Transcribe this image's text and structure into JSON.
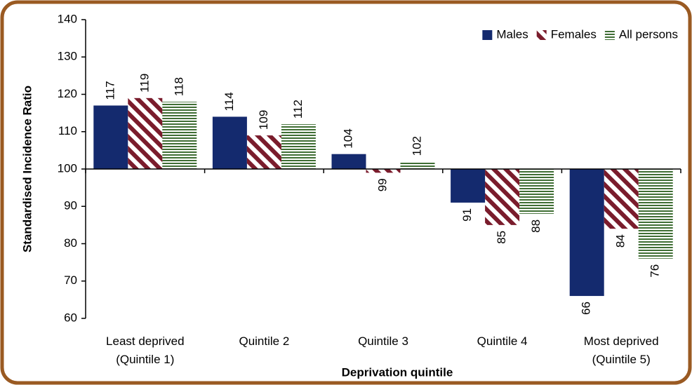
{
  "chart_data": {
    "type": "bar",
    "xlabel": "Deprivation quintile",
    "ylabel": "Standardised Incidence Ratio",
    "categories": [
      "Least deprived (Quintile 1)",
      "Quintile 2",
      "Quintile 3",
      "Quintile 4",
      "Most deprived (Quintile 5)"
    ],
    "series": [
      {
        "name": "Males",
        "color": "#142a6e",
        "pattern": "solid",
        "values": [
          117,
          114,
          104,
          91,
          66
        ]
      },
      {
        "name": "Females",
        "color": "#7a1c2c",
        "pattern": "diagonal",
        "values": [
          119,
          109,
          99,
          85,
          84
        ]
      },
      {
        "name": "All persons",
        "color": "#3f6e34",
        "pattern": "horizontal",
        "values": [
          118,
          112,
          102,
          88,
          76
        ]
      }
    ],
    "ylim": [
      60,
      140
    ],
    "yticks": [
      60,
      70,
      80,
      90,
      100,
      110,
      120,
      130,
      140
    ],
    "x_axis_crossing": 100,
    "legend": "upper right"
  }
}
